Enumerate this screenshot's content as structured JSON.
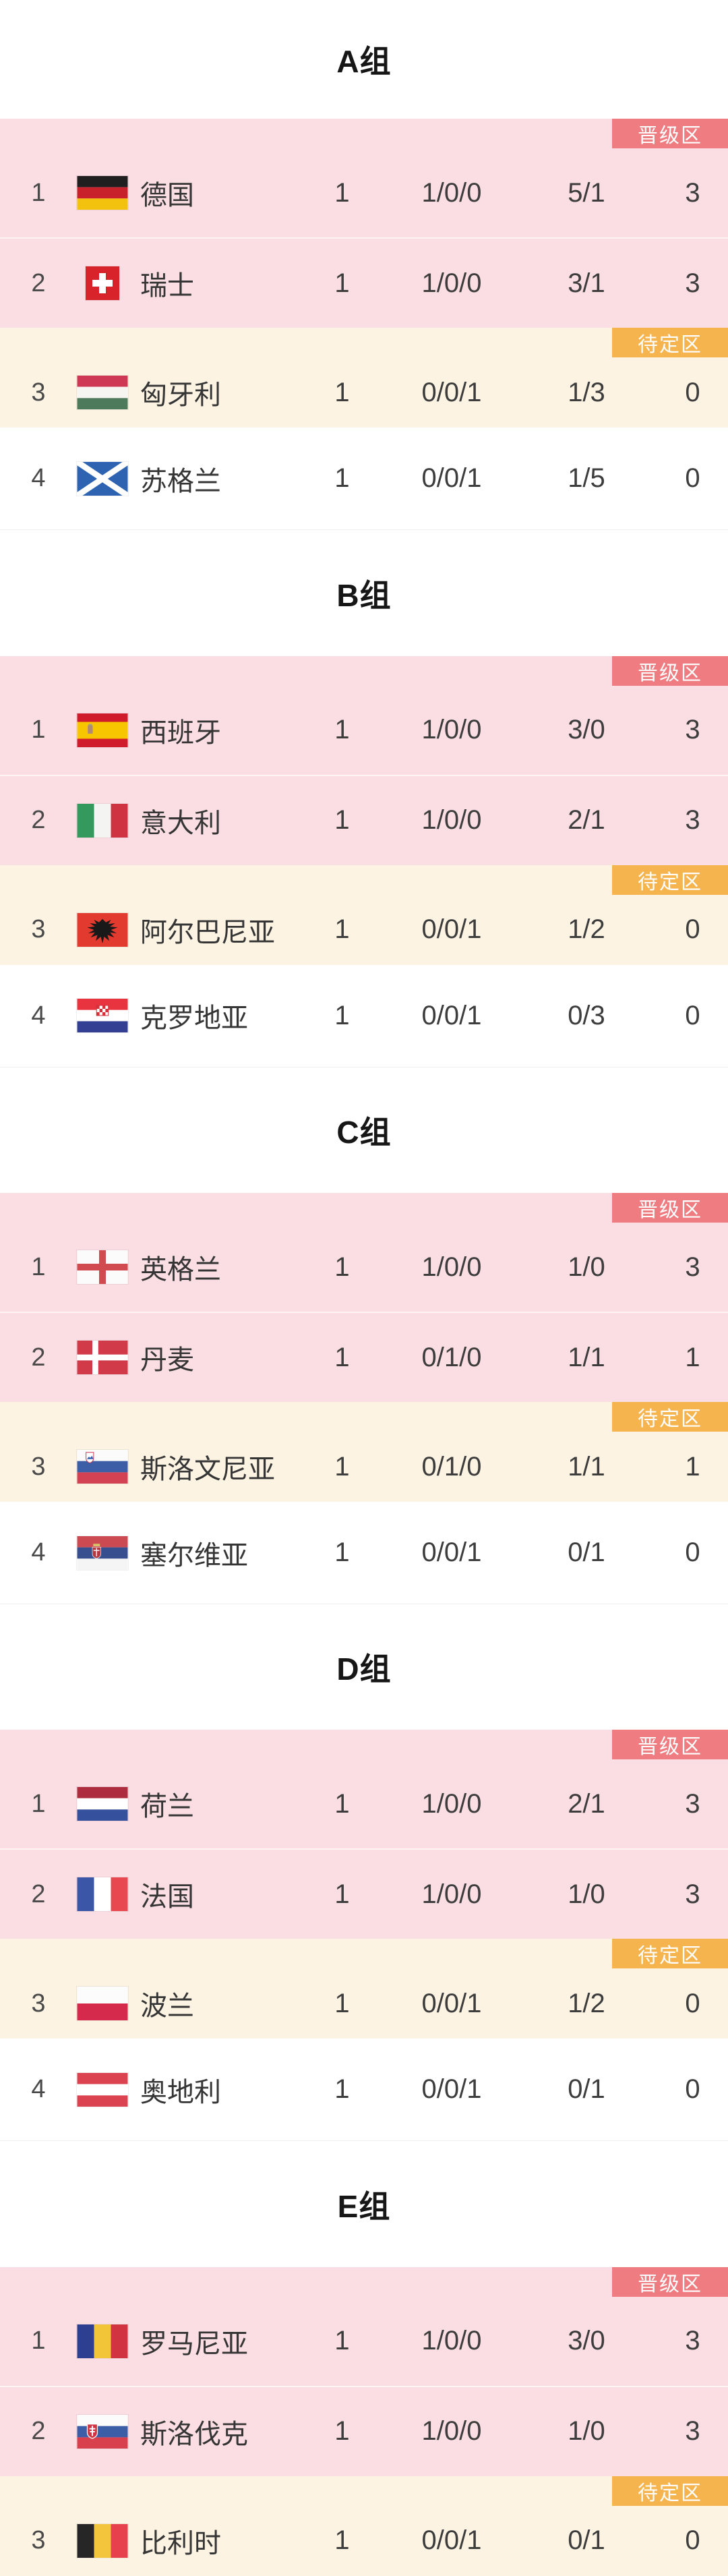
{
  "page": {
    "background": "#ffffff"
  },
  "theme": {
    "promotion_zone_bg": "#fbdee3",
    "pending_zone_bg": "#fdf3e3",
    "fourth_row_bg": "#ffffff",
    "promotion_badge_bg": "#ee7c80",
    "pending_badge_bg": "#f6b44e",
    "badge_text": "#ffffff",
    "text": "#3c3c3c"
  },
  "labels": {
    "promotion_zone": "晋级区",
    "pending_zone": "待定区"
  },
  "groups": [
    {
      "title": "A组",
      "teams": [
        {
          "rank": "1",
          "flag": "germany",
          "name": "德国",
          "played": "1",
          "wdl": "1/0/0",
          "goals": "5/1",
          "points": "3"
        },
        {
          "rank": "2",
          "flag": "switzerland",
          "name": "瑞士",
          "played": "1",
          "wdl": "1/0/0",
          "goals": "3/1",
          "points": "3"
        },
        {
          "rank": "3",
          "flag": "hungary",
          "name": "匈牙利",
          "played": "1",
          "wdl": "0/0/1",
          "goals": "1/3",
          "points": "0"
        },
        {
          "rank": "4",
          "flag": "scotland",
          "name": "苏格兰",
          "played": "1",
          "wdl": "0/0/1",
          "goals": "1/5",
          "points": "0"
        }
      ]
    },
    {
      "title": "B组",
      "teams": [
        {
          "rank": "1",
          "flag": "spain",
          "name": "西班牙",
          "played": "1",
          "wdl": "1/0/0",
          "goals": "3/0",
          "points": "3"
        },
        {
          "rank": "2",
          "flag": "italy",
          "name": "意大利",
          "played": "1",
          "wdl": "1/0/0",
          "goals": "2/1",
          "points": "3"
        },
        {
          "rank": "3",
          "flag": "albania",
          "name": "阿尔巴尼亚",
          "played": "1",
          "wdl": "0/0/1",
          "goals": "1/2",
          "points": "0"
        },
        {
          "rank": "4",
          "flag": "croatia",
          "name": "克罗地亚",
          "played": "1",
          "wdl": "0/0/1",
          "goals": "0/3",
          "points": "0"
        }
      ]
    },
    {
      "title": "C组",
      "teams": [
        {
          "rank": "1",
          "flag": "england",
          "name": "英格兰",
          "played": "1",
          "wdl": "1/0/0",
          "goals": "1/0",
          "points": "3"
        },
        {
          "rank": "2",
          "flag": "denmark",
          "name": "丹麦",
          "played": "1",
          "wdl": "0/1/0",
          "goals": "1/1",
          "points": "1"
        },
        {
          "rank": "3",
          "flag": "slovenia",
          "name": "斯洛文尼亚",
          "played": "1",
          "wdl": "0/1/0",
          "goals": "1/1",
          "points": "1"
        },
        {
          "rank": "4",
          "flag": "serbia",
          "name": "塞尔维亚",
          "played": "1",
          "wdl": "0/0/1",
          "goals": "0/1",
          "points": "0"
        }
      ]
    },
    {
      "title": "D组",
      "teams": [
        {
          "rank": "1",
          "flag": "netherlands",
          "name": "荷兰",
          "played": "1",
          "wdl": "1/0/0",
          "goals": "2/1",
          "points": "3"
        },
        {
          "rank": "2",
          "flag": "france",
          "name": "法国",
          "played": "1",
          "wdl": "1/0/0",
          "goals": "1/0",
          "points": "3"
        },
        {
          "rank": "3",
          "flag": "poland",
          "name": "波兰",
          "played": "1",
          "wdl": "0/0/1",
          "goals": "1/2",
          "points": "0"
        },
        {
          "rank": "4",
          "flag": "austria",
          "name": "奥地利",
          "played": "1",
          "wdl": "0/0/1",
          "goals": "0/1",
          "points": "0"
        }
      ]
    },
    {
      "title": "E组",
      "teams": [
        {
          "rank": "1",
          "flag": "romania",
          "name": "罗马尼亚",
          "played": "1",
          "wdl": "1/0/0",
          "goals": "3/0",
          "points": "3"
        },
        {
          "rank": "2",
          "flag": "slovakia",
          "name": "斯洛伐克",
          "played": "1",
          "wdl": "1/0/0",
          "goals": "1/0",
          "points": "3"
        },
        {
          "rank": "3",
          "flag": "belgium",
          "name": "比利时",
          "played": "1",
          "wdl": "0/0/1",
          "goals": "0/1",
          "points": "0"
        }
      ]
    }
  ]
}
